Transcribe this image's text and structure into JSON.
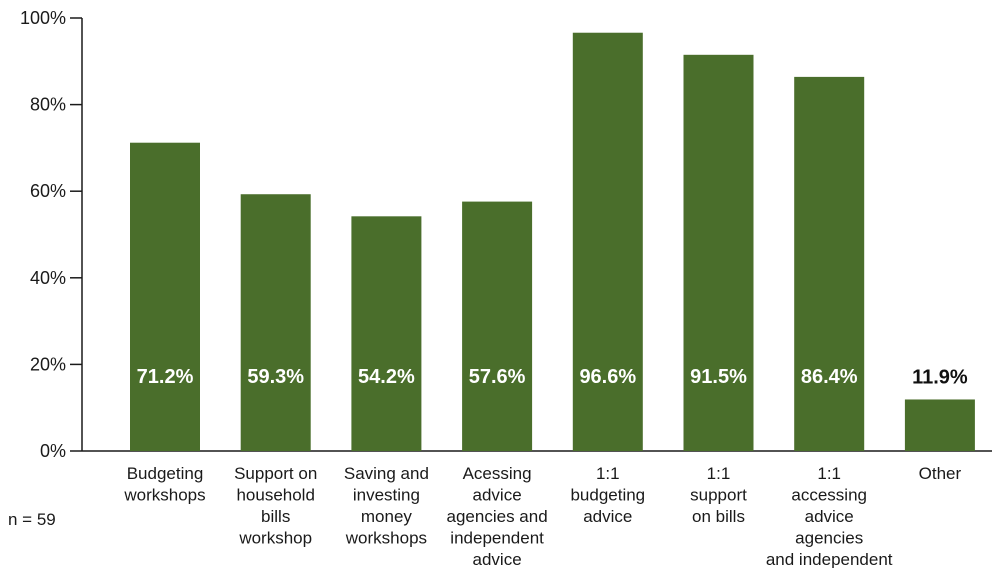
{
  "chart_data": {
    "type": "bar",
    "categories": [
      [
        "Budgeting",
        "workshops"
      ],
      [
        "Support on",
        "household",
        "bills",
        "workshop"
      ],
      [
        "Saving and",
        "investing",
        "money",
        "workshops"
      ],
      [
        "Acessing",
        "advice",
        "agencies and",
        "independent",
        "advice"
      ],
      [
        "1:1",
        "budgeting",
        "advice"
      ],
      [
        "1:1",
        "support",
        "on bills"
      ],
      [
        "1:1",
        "accessing",
        "advice",
        "agencies",
        "and independent"
      ],
      [
        "Other"
      ]
    ],
    "values": [
      71.2,
      59.3,
      54.2,
      57.6,
      96.6,
      91.5,
      86.4,
      11.9
    ],
    "value_labels": [
      "71.2%",
      "59.3%",
      "54.2%",
      "57.6%",
      "96.6%",
      "91.5%",
      "86.4%",
      "11.9%"
    ],
    "ylim": [
      0,
      100
    ],
    "yticks": [
      {
        "value": 0,
        "label": "0%"
      },
      {
        "value": 20,
        "label": "20%"
      },
      {
        "value": 40,
        "label": "40%"
      },
      {
        "value": 60,
        "label": "60%"
      },
      {
        "value": 80,
        "label": "80%"
      },
      {
        "value": 100,
        "label": "100%"
      }
    ],
    "bar_color": "#4a6e2b",
    "label_color_inside": "#ffffff",
    "label_color_outside": "#111111",
    "grid": false,
    "note": "n = 59"
  }
}
